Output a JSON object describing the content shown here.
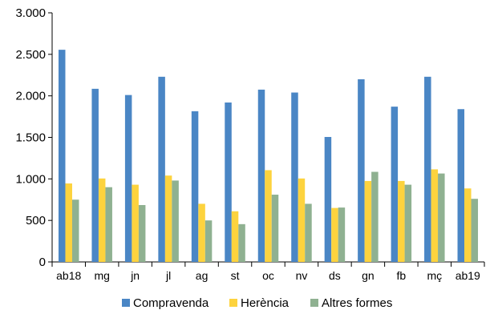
{
  "chart_data": {
    "type": "bar",
    "title": "",
    "xlabel": "",
    "ylabel": "",
    "ylim": [
      0,
      3000
    ],
    "yticks": [
      0,
      500,
      1000,
      1500,
      2000,
      2500,
      3000
    ],
    "ytick_labels": [
      "0",
      "500",
      "1.000",
      "1.500",
      "2.000",
      "2.500",
      "3.000"
    ],
    "grid": false,
    "legend_position": "bottom",
    "categories": [
      "ab18",
      "mg",
      "jn",
      "jl",
      "ag",
      "st",
      "oc",
      "nv",
      "ds",
      "gn",
      "fb",
      "mç",
      "ab19"
    ],
    "series": [
      {
        "name": "Compravenda",
        "color": "#4a86c5",
        "values": [
          2555,
          2085,
          2010,
          2230,
          1815,
          1920,
          2075,
          2040,
          1505,
          2200,
          1870,
          2230,
          1840
        ]
      },
      {
        "name": "Herència",
        "color": "#fdd33e",
        "values": [
          945,
          1005,
          930,
          1040,
          700,
          610,
          1105,
          1005,
          650,
          975,
          975,
          1115,
          885
        ]
      },
      {
        "name": "Altres formes",
        "color": "#8fb191",
        "values": [
          750,
          900,
          685,
          980,
          500,
          455,
          810,
          700,
          655,
          1085,
          930,
          1065,
          760
        ]
      }
    ]
  }
}
